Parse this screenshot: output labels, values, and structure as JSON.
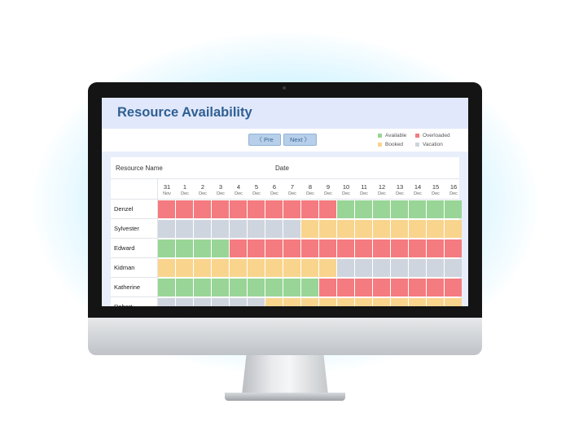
{
  "app": {
    "title": "Resource Availability"
  },
  "toolbar": {
    "prev_label": "〈 Pre",
    "next_label": "Next 〉"
  },
  "legend": [
    {
      "label": "Available",
      "color": "#98d596"
    },
    {
      "label": "Overloaded",
      "color": "#f47b7f"
    },
    {
      "label": "Booked",
      "color": "#f9d48d"
    },
    {
      "label": "Vacation",
      "color": "#cfd5de"
    }
  ],
  "table": {
    "resource_header": "Resource Name",
    "date_header": "Date",
    "days": [
      {
        "day": "31",
        "month": "Nov"
      },
      {
        "day": "1",
        "month": "Dec"
      },
      {
        "day": "2",
        "month": "Dec"
      },
      {
        "day": "3",
        "month": "Dec"
      },
      {
        "day": "4",
        "month": "Dec"
      },
      {
        "day": "5",
        "month": "Dec"
      },
      {
        "day": "6",
        "month": "Dec"
      },
      {
        "day": "7",
        "month": "Dec"
      },
      {
        "day": "8",
        "month": "Dec"
      },
      {
        "day": "9",
        "month": "Dec"
      },
      {
        "day": "10",
        "month": "Dec"
      },
      {
        "day": "11",
        "month": "Dec"
      },
      {
        "day": "12",
        "month": "Dec"
      },
      {
        "day": "13",
        "month": "Dec"
      },
      {
        "day": "14",
        "month": "Dec"
      },
      {
        "day": "15",
        "month": "Dec"
      },
      {
        "day": "16",
        "month": "Dec"
      }
    ],
    "rows": [
      {
        "name": "Denzel",
        "status": [
          "O",
          "O",
          "O",
          "O",
          "O",
          "O",
          "O",
          "O",
          "O",
          "O",
          "A",
          "A",
          "A",
          "A",
          "A",
          "A",
          "A"
        ]
      },
      {
        "name": "Sylvester",
        "status": [
          "V",
          "V",
          "V",
          "V",
          "V",
          "V",
          "V",
          "V",
          "B",
          "B",
          "B",
          "B",
          "B",
          "B",
          "B",
          "B",
          "B"
        ]
      },
      {
        "name": "Edward",
        "status": [
          "A",
          "A",
          "A",
          "A",
          "O",
          "O",
          "O",
          "O",
          "O",
          "O",
          "O",
          "O",
          "O",
          "O",
          "O",
          "O",
          "O"
        ]
      },
      {
        "name": "Kidman",
        "status": [
          "B",
          "B",
          "B",
          "B",
          "B",
          "B",
          "B",
          "B",
          "B",
          "B",
          "V",
          "V",
          "V",
          "V",
          "V",
          "V",
          "V"
        ]
      },
      {
        "name": "Katherine",
        "status": [
          "A",
          "A",
          "A",
          "A",
          "A",
          "A",
          "A",
          "A",
          "A",
          "O",
          "O",
          "O",
          "O",
          "O",
          "O",
          "O",
          "O"
        ]
      },
      {
        "name": "Robert",
        "status": [
          "V",
          "V",
          "V",
          "V",
          "V",
          "V",
          "B",
          "B",
          "B",
          "B",
          "B",
          "B",
          "B",
          "B",
          "B",
          "B",
          "B"
        ]
      }
    ],
    "status_colors": {
      "A": "#98d596",
      "O": "#f47b7f",
      "B": "#f9d48d",
      "V": "#cfd5de"
    }
  }
}
